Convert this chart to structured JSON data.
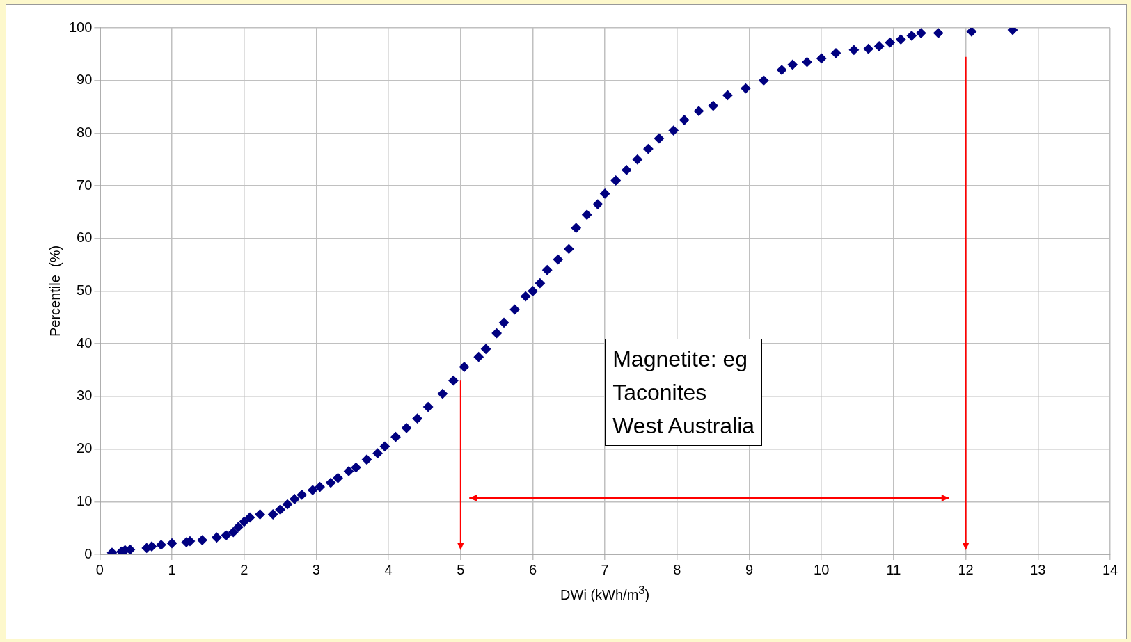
{
  "chart_data": {
    "type": "scatter",
    "xlabel": "DWi (kWh/m$^{3}$)",
    "ylabel": "Percentile  (%)",
    "annotations": [
      "Magnetite: eg\nTaconites\nWest Australia"
    ],
    "x": [
      0.17,
      0.3,
      0.35,
      0.42,
      0.65,
      0.72,
      0.85,
      1.0,
      1.2,
      1.25,
      1.42,
      1.62,
      1.75,
      1.85,
      1.92,
      2.0,
      2.08,
      2.22,
      2.4,
      2.5,
      2.6,
      2.7,
      2.8,
      2.95,
      3.05,
      3.2,
      3.3,
      3.45,
      3.55,
      3.7,
      3.85,
      3.95,
      4.1,
      4.25,
      4.4,
      4.55,
      4.75,
      4.9,
      5.05,
      5.25,
      5.35,
      5.5,
      5.6,
      5.75,
      5.9,
      6.0,
      6.1,
      6.2,
      6.35,
      6.5,
      6.6,
      6.75,
      6.9,
      7.0,
      7.15,
      7.3,
      7.45,
      7.6,
      7.75,
      7.95,
      8.1,
      8.3,
      8.5,
      8.7,
      8.95,
      9.2,
      9.45,
      9.6,
      9.8,
      10.0,
      10.2,
      10.45,
      10.65,
      10.8,
      10.95,
      11.1,
      11.25,
      11.38,
      11.62,
      12.08,
      12.65
    ],
    "series": [
      {
        "color": "#000080",
        "values": [
          0.3,
          0.5,
          0.8,
          0.9,
          1.2,
          1.5,
          1.8,
          2.1,
          2.3,
          2.5,
          2.7,
          3.2,
          3.6,
          4.2,
          5.2,
          6.2,
          7.0,
          7.6,
          7.6,
          8.5,
          9.5,
          10.5,
          11.3,
          12.2,
          12.8,
          13.6,
          14.5,
          15.8,
          16.5,
          18,
          19.2,
          20.5,
          22.3,
          24,
          25.8,
          28,
          30.5,
          33,
          35.6,
          37.5,
          39,
          42,
          44,
          46.5,
          49,
          50,
          51.5,
          54,
          56,
          58,
          62,
          64.5,
          66.5,
          68.5,
          71,
          73,
          75,
          77,
          79,
          80.5,
          82.5,
          84.2,
          85.2,
          87.2,
          88.5,
          90,
          92,
          93,
          93.5,
          94.2,
          95.2,
          95.8,
          96,
          96.5,
          97.2,
          97.8,
          98.5,
          99,
          99,
          99.3,
          99.6
        ]
      }
    ],
    "xlim": [
      0,
      14
    ],
    "xticks": [
      0,
      1,
      2,
      3,
      4,
      5,
      6,
      7,
      8,
      9,
      10,
      11,
      12,
      13,
      14
    ],
    "ylim": [
      0,
      100
    ],
    "yticks": [
      0,
      10,
      20,
      30,
      40,
      50,
      60,
      70,
      80,
      90,
      100
    ],
    "ref_lines": [
      {
        "axis": "x",
        "value": 5,
        "color": "#ff0000"
      },
      {
        "axis": "x",
        "value": 12,
        "color": "#ff0000"
      }
    ],
    "grid": true,
    "legend": false,
    "marker": "diamond"
  }
}
